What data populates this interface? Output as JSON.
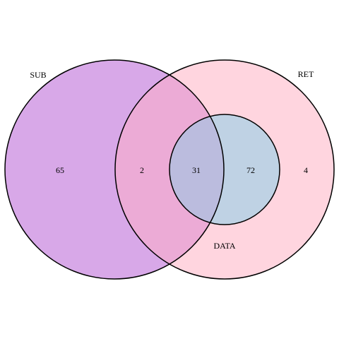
{
  "sets": [
    {
      "id": "sub",
      "label": "SUB",
      "fill": "#d8a8e8"
    },
    {
      "id": "ret",
      "label": "RET",
      "fill": "#ffd5df"
    },
    {
      "id": "data",
      "label": "DATA",
      "fill": "#bfd2e4"
    }
  ],
  "overlap_colors": {
    "sub_ret": "#ecabd6",
    "sub_ret_data": "#bbbcde"
  },
  "regions": {
    "sub_only": "65",
    "sub_ret_only": "2",
    "sub_ret_data": "31",
    "ret_data_only": "72",
    "ret_only": "4"
  }
}
